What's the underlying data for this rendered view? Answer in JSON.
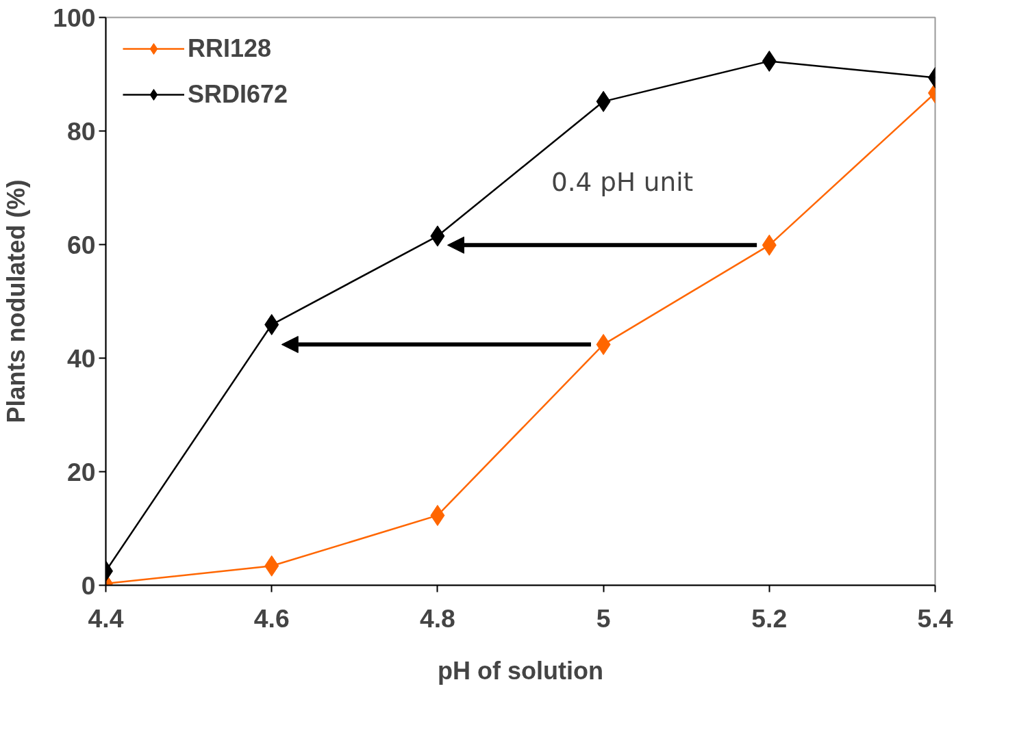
{
  "chart_data": {
    "type": "line",
    "xlabel": "pH of solution",
    "ylabel": "Plants nodulated (%)",
    "x": [
      4.4,
      4.6,
      4.8,
      5.0,
      5.2,
      5.4
    ],
    "series": [
      {
        "name": "RRI128",
        "color": "#ff6600",
        "values": [
          0.3,
          3.4,
          12.3,
          42.4,
          59.9,
          86.7
        ]
      },
      {
        "name": "SRDI672",
        "color": "#000000",
        "values": [
          2.5,
          45.9,
          61.5,
          85.2,
          92.3,
          89.4
        ]
      }
    ],
    "xlim": [
      4.4,
      5.4
    ],
    "xticks": [
      4.4,
      4.6,
      4.8,
      {
        "value": 5.0,
        "label": "5"
      },
      5.2,
      5.4
    ],
    "ylim": [
      0,
      100
    ],
    "yticks": [
      0,
      20,
      40,
      60,
      80,
      100
    ],
    "annotations": [
      "0.4  pH unit"
    ],
    "grid": false,
    "legend": "top left",
    "marker": "diamond",
    "line_style": "solid"
  }
}
